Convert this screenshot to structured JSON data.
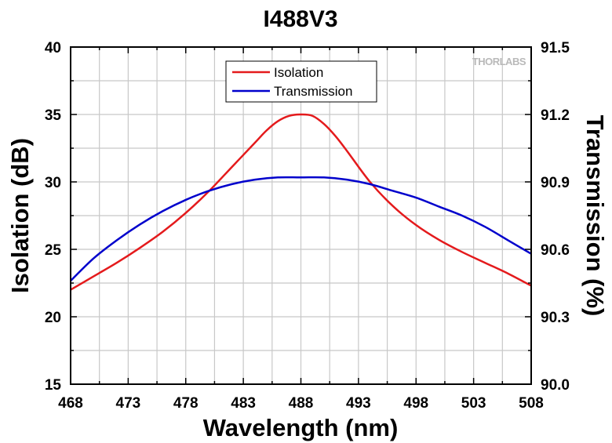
{
  "chart_data": {
    "type": "line",
    "title": "I488V3",
    "xlabel": "Wavelength (nm)",
    "ylabel_left": "Isolation (dB)",
    "ylabel_right": "Transmission (%)",
    "xlim": [
      468,
      508
    ],
    "ylim_left": [
      15,
      40
    ],
    "ylim_right": [
      90.0,
      91.5
    ],
    "x_ticks": [
      "468",
      "473",
      "478",
      "483",
      "488",
      "493",
      "498",
      "503",
      "508"
    ],
    "y_left_ticks": [
      "15",
      "20",
      "25",
      "30",
      "35",
      "40"
    ],
    "y_right_ticks": [
      "90.0",
      "90.3",
      "90.6",
      "90.9",
      "91.2",
      "91.5"
    ],
    "grid": true,
    "legend_position": "top-center",
    "watermark": "THORLABS",
    "series": [
      {
        "name": "Isolation",
        "axis": "left",
        "color": "#e41a1c",
        "x": [
          468,
          470,
          472,
          474,
          476,
          478,
          480,
          482,
          484,
          485,
          486,
          487,
          488,
          489,
          490,
          491,
          492,
          494,
          496,
          498,
          500,
          502,
          504,
          506,
          508
        ],
        "y": [
          22.0,
          23.0,
          24.0,
          25.1,
          26.3,
          27.7,
          29.3,
          31.1,
          32.9,
          33.8,
          34.5,
          34.9,
          35.0,
          34.9,
          34.3,
          33.4,
          32.3,
          30.0,
          28.2,
          26.8,
          25.7,
          24.8,
          24.0,
          23.2,
          22.3
        ]
      },
      {
        "name": "Transmission",
        "axis": "right",
        "color": "#0000cc",
        "x": [
          468,
          470,
          472,
          474,
          476,
          478,
          480,
          482,
          484,
          486,
          488,
          490,
          492,
          494,
          496,
          498,
          500,
          502,
          504,
          506,
          508
        ],
        "y": [
          90.46,
          90.56,
          90.64,
          90.71,
          90.77,
          90.82,
          90.86,
          90.89,
          90.91,
          90.92,
          90.92,
          90.92,
          90.91,
          90.89,
          90.86,
          90.83,
          90.79,
          90.75,
          90.7,
          90.64,
          90.58
        ]
      }
    ]
  }
}
